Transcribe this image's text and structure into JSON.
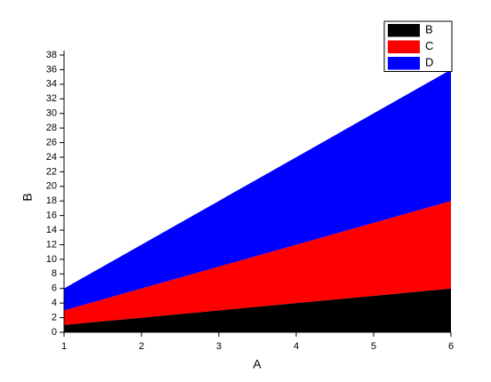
{
  "chart_data": {
    "type": "stacked-area",
    "x_label": "A",
    "y_label": "B",
    "x": [
      1,
      2,
      3,
      4,
      5,
      6
    ],
    "series": [
      {
        "name": "B",
        "color": "#000000",
        "values": [
          1,
          2,
          3,
          4,
          5,
          6
        ]
      },
      {
        "name": "C",
        "color": "#ff0000",
        "values": [
          2,
          4,
          6,
          8,
          10,
          12
        ]
      },
      {
        "name": "D",
        "color": "#0000ff",
        "values": [
          3,
          6,
          9,
          12,
          15,
          18
        ]
      }
    ],
    "xlim": [
      1,
      6
    ],
    "xticks": [
      1,
      2,
      3,
      4,
      5,
      6
    ],
    "ylim": [
      0,
      38
    ],
    "yticks": [
      0,
      2,
      4,
      6,
      8,
      10,
      12,
      14,
      16,
      18,
      20,
      22,
      24,
      26,
      28,
      30,
      32,
      34,
      36,
      38
    ],
    "legend": "top-right"
  }
}
